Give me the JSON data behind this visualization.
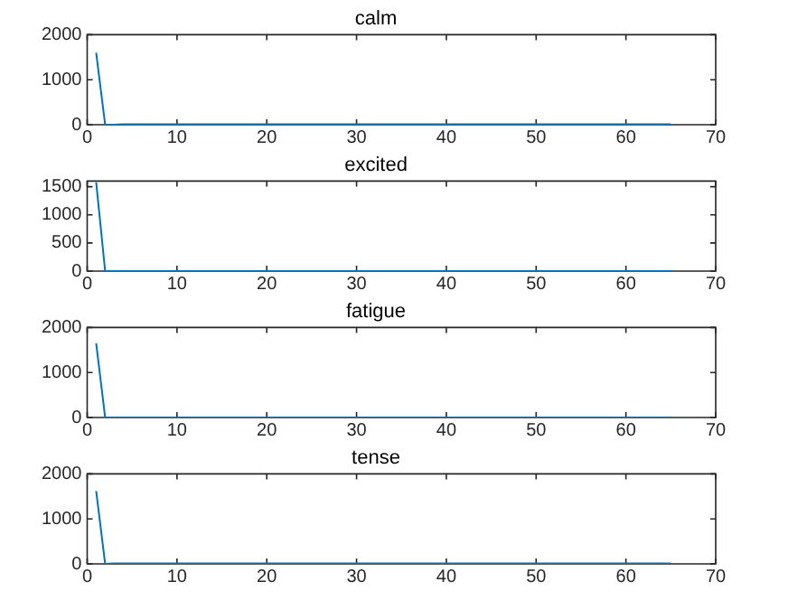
{
  "chart_data": [
    {
      "type": "line",
      "title": "calm",
      "x": [
        1,
        2,
        3,
        4,
        10,
        20,
        30,
        40,
        50,
        60,
        65
      ],
      "values": [
        1600,
        0,
        0,
        10,
        10,
        10,
        10,
        10,
        10,
        10,
        10
      ],
      "color": "#0072bd",
      "xlim": [
        0,
        70
      ],
      "xticks": [
        0,
        10,
        20,
        30,
        40,
        50,
        60,
        70
      ],
      "ylim": [
        0,
        2000
      ],
      "yticks": [
        0,
        1000,
        2000
      ],
      "grid": false,
      "marker": "none"
    },
    {
      "type": "line",
      "title": "excited",
      "x": [
        1,
        2,
        3,
        10,
        20,
        30,
        40,
        50,
        60,
        65
      ],
      "values": [
        1580,
        0,
        0,
        0,
        0,
        0,
        0,
        0,
        0,
        0
      ],
      "color": "#0072bd",
      "xlim": [
        0,
        70
      ],
      "xticks": [
        0,
        10,
        20,
        30,
        40,
        50,
        60,
        70
      ],
      "ylim": [
        0,
        1600
      ],
      "yticks": [
        0,
        500,
        1000,
        1500
      ],
      "grid": false,
      "marker": "none"
    },
    {
      "type": "line",
      "title": "fatigue",
      "x": [
        1,
        2,
        3,
        10,
        20,
        30,
        40,
        50,
        60,
        65
      ],
      "values": [
        1650,
        0,
        0,
        0,
        0,
        0,
        0,
        0,
        0,
        0
      ],
      "color": "#0072bd",
      "xlim": [
        0,
        70
      ],
      "xticks": [
        0,
        10,
        20,
        30,
        40,
        50,
        60,
        70
      ],
      "ylim": [
        0,
        2000
      ],
      "yticks": [
        0,
        1000,
        2000
      ],
      "grid": false,
      "marker": "none"
    },
    {
      "type": "line",
      "title": "tense",
      "x": [
        1,
        2,
        3,
        10,
        20,
        30,
        40,
        50,
        60,
        65
      ],
      "values": [
        1620,
        0,
        10,
        10,
        10,
        10,
        10,
        10,
        10,
        10
      ],
      "color": "#0072bd",
      "xlim": [
        0,
        70
      ],
      "xticks": [
        0,
        10,
        20,
        30,
        40,
        50,
        60,
        70
      ],
      "ylim": [
        0,
        2000
      ],
      "yticks": [
        0,
        1000,
        2000
      ],
      "grid": false,
      "marker": "none"
    }
  ]
}
